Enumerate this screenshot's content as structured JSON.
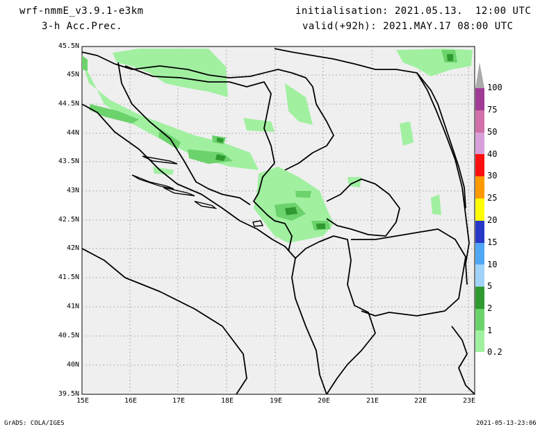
{
  "header": {
    "model": "wrf-nmmE_v3.9.1-e3km",
    "field": "3-h Acc.Prec.",
    "init": "initialisation: 2021.05.13.  12:00 UTC",
    "valid": "valid(+92h): 2021.MAY.17 08:00 UTC"
  },
  "footer": {
    "credit": "GrADS: COLA/IGES",
    "timestamp": "2021-05-13-23:06"
  },
  "map": {
    "lat_labels": [
      "45.5N",
      "45N",
      "44.5N",
      "44N",
      "43.5N",
      "43N",
      "42.5N",
      "42N",
      "41.5N",
      "41N",
      "40.5N",
      "40N",
      "39.5N"
    ],
    "lon_labels": [
      "15E",
      "16E",
      "17E",
      "18E",
      "19E",
      "20E",
      "21E",
      "22E",
      "23E"
    ],
    "background_color": "#efefef"
  },
  "colorbar": {
    "levels": [
      "0.2",
      "1",
      "2",
      "5",
      "10",
      "15",
      "20",
      "25",
      "30",
      "40",
      "50",
      "75",
      "100"
    ],
    "colors": [
      "#a0f0a0",
      "#6cd26c",
      "#2f9a2f",
      "#a0d2fa",
      "#50a8f5",
      "#2838c8",
      "#ffff00",
      "#ff9900",
      "#ff1010",
      "#d8a0d8",
      "#d070a8",
      "#a03c96",
      "#aaaaaa"
    ]
  }
}
